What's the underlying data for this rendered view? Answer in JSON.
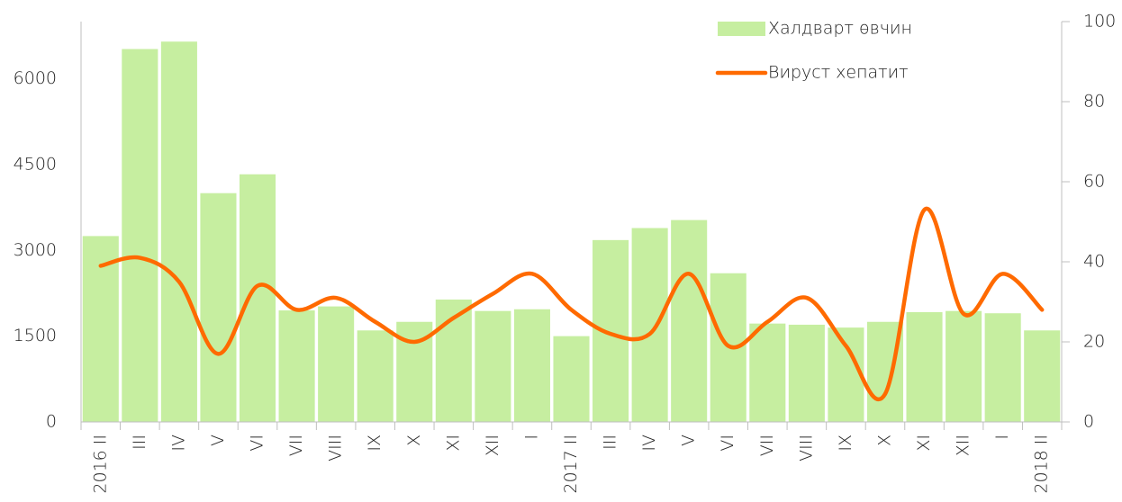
{
  "chart_data": {
    "type": "bar",
    "categories": [
      "2016 II",
      "III",
      "IV",
      "V",
      "VI",
      "VII",
      "VIII",
      "IX",
      "X",
      "XI",
      "XII",
      "I",
      "2017 II",
      "III",
      "IV",
      "V",
      "VI",
      "VII",
      "VIII",
      "IX",
      "X",
      "XI",
      "XII",
      "I",
      "2018 II"
    ],
    "series": [
      {
        "name": "Халдварт өвчин",
        "type": "bar",
        "color": "#c6eea0",
        "axis": "y",
        "values": [
          3250,
          6520,
          6650,
          4000,
          4330,
          1950,
          2020,
          1600,
          1750,
          2140,
          1940,
          1970,
          1500,
          3180,
          3390,
          3530,
          2600,
          1720,
          1700,
          1650,
          1750,
          1920,
          1940,
          1900,
          1600
        ]
      },
      {
        "name": "Вируст хепатит",
        "type": "line",
        "color": "#ff6a00",
        "axis": "y2",
        "values": [
          39,
          41,
          35,
          17,
          34,
          28,
          31,
          25,
          20,
          26,
          32,
          37,
          28,
          22,
          22,
          37,
          19,
          25,
          31,
          19,
          7,
          53,
          27,
          37,
          28
        ]
      }
    ],
    "ylim": [
      0,
      7000
    ],
    "yticks": [
      0,
      1500,
      3000,
      4500,
      6000
    ],
    "y2lim": [
      0,
      100
    ],
    "y2ticks": [
      0,
      20,
      40,
      60,
      80,
      100
    ],
    "legend": "top-right",
    "grid": false
  }
}
